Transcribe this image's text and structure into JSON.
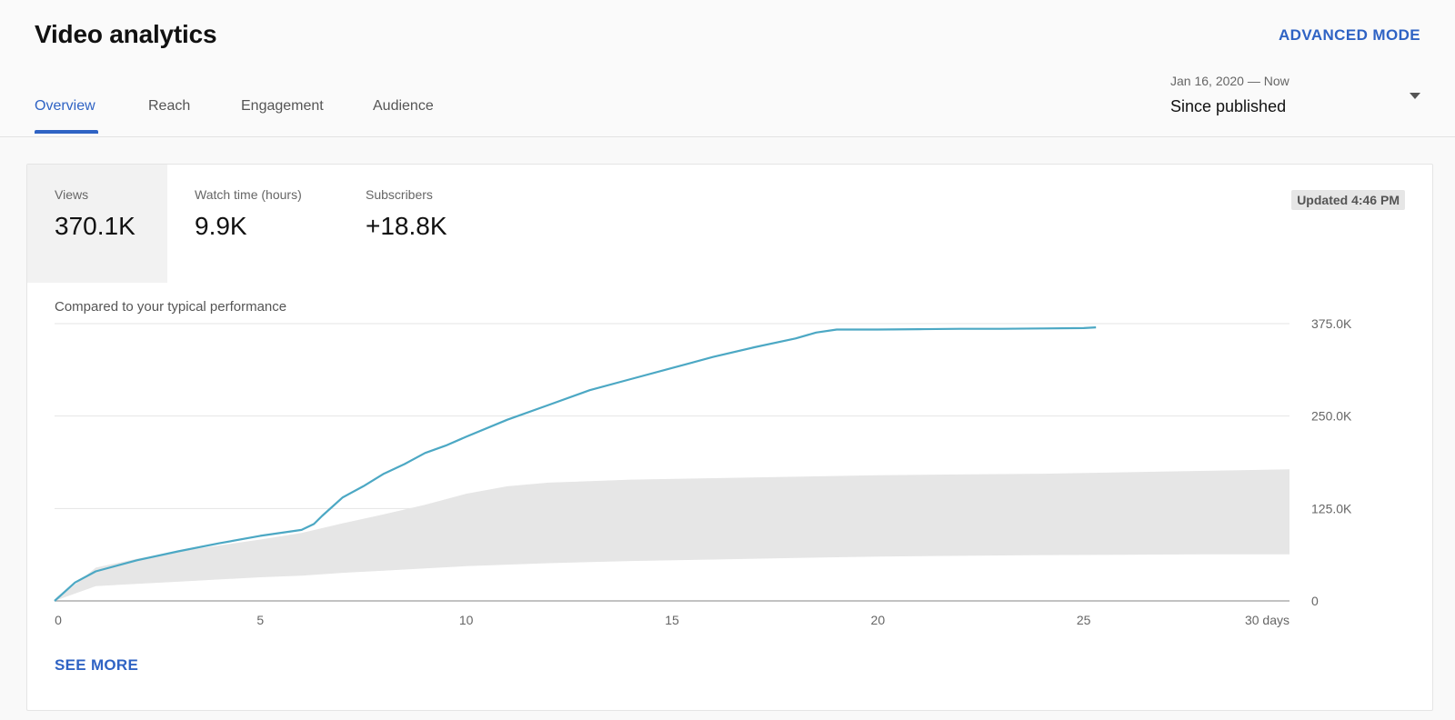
{
  "header": {
    "title": "Video analytics",
    "advanced_label": "ADVANCED MODE",
    "tabs": [
      {
        "label": "Overview",
        "active": true
      },
      {
        "label": "Reach",
        "active": false
      },
      {
        "label": "Engagement",
        "active": false
      },
      {
        "label": "Audience",
        "active": false
      }
    ],
    "date_range": {
      "range": "Jan 16, 2020 — Now",
      "label": "Since published"
    }
  },
  "metrics": [
    {
      "label": "Views",
      "value": "370.1K",
      "selected": true
    },
    {
      "label": "Watch time (hours)",
      "value": "9.9K",
      "selected": false
    },
    {
      "label": "Subscribers",
      "value": "+18.8K",
      "selected": false
    }
  ],
  "updated_text": "Updated 4:46 PM",
  "compare_text": "Compared to your typical performance",
  "see_more_label": "SEE MORE",
  "colors": {
    "accent": "#2f63c4",
    "line": "#4ca8c4",
    "band": "#e6e6e6"
  },
  "chart_data": {
    "type": "line",
    "xlim": [
      0,
      30
    ],
    "ylim": [
      0,
      375000
    ],
    "x_ticks": [
      0,
      5,
      10,
      15,
      20,
      25,
      30
    ],
    "x_tick_labels": [
      "0",
      "5",
      "10",
      "15",
      "20",
      "25",
      "30 days"
    ],
    "y_ticks": [
      0,
      125000,
      250000,
      375000
    ],
    "y_tick_labels": [
      "0",
      "125.0K",
      "250.0K",
      "375.0K"
    ],
    "grid": true,
    "series": [
      {
        "x": [
          0,
          0.5,
          1,
          2,
          3,
          4,
          5,
          6,
          6.3,
          6.5,
          7,
          7.5,
          8,
          8.5,
          9,
          9.5,
          10,
          11,
          12,
          13,
          14,
          15,
          16,
          17,
          18,
          18.5,
          19,
          20,
          21,
          22,
          23,
          24,
          25,
          25.3
        ],
        "y": [
          0,
          25000,
          40000,
          55000,
          67000,
          78000,
          88000,
          96000,
          104000,
          115000,
          140000,
          155000,
          172000,
          185000,
          200000,
          210000,
          222000,
          245000,
          265000,
          285000,
          300000,
          315000,
          330000,
          343000,
          355000,
          363000,
          367000,
          367000,
          367500,
          368000,
          368000,
          368500,
          369000,
          370000
        ]
      }
    ],
    "band": {
      "x": [
        0,
        1,
        2,
        3,
        4,
        5,
        6,
        7,
        8,
        9,
        10,
        11,
        12,
        14,
        16,
        18,
        20,
        22,
        24,
        26,
        28,
        30
      ],
      "low": [
        0,
        20000,
        23000,
        26000,
        29000,
        32000,
        34000,
        38000,
        41000,
        44000,
        47000,
        49000,
        51000,
        54000,
        56000,
        58000,
        60000,
        61000,
        62000,
        62500,
        63000,
        63000
      ],
      "high": [
        0,
        45000,
        57000,
        67000,
        75000,
        83000,
        92000,
        105000,
        117000,
        130000,
        145000,
        155000,
        160000,
        164000,
        166000,
        168000,
        170000,
        171000,
        172000,
        174000,
        176000,
        178000
      ]
    }
  }
}
